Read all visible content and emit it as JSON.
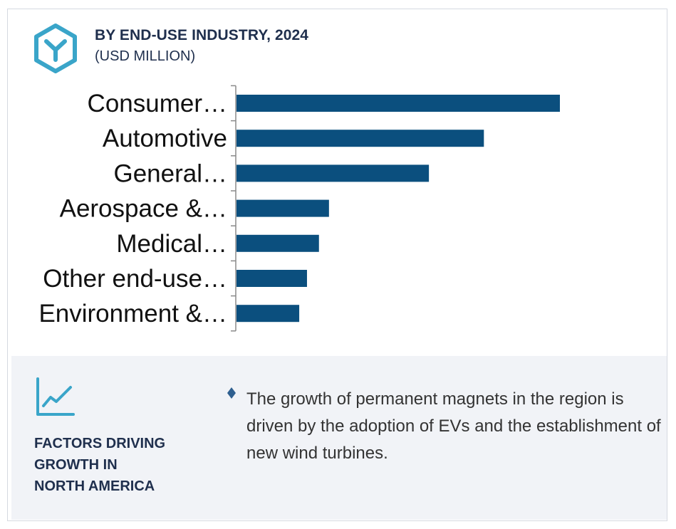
{
  "header": {
    "icon": "hexagon-y-logo-icon",
    "title": "BY END-USE INDUSTRY, 2024",
    "subtitle": "(USD MILLION)"
  },
  "colors": {
    "bar": "#0b4f7e",
    "accent": "#3aa5c9",
    "title": "#1f2f4d",
    "panel_bg": "#f1f3f7"
  },
  "chart_data": {
    "type": "bar",
    "orientation": "horizontal",
    "categories": [
      "Consumer…",
      "Automotive",
      "General…",
      "Aerospace &…",
      "Medical…",
      "Other end-use…",
      "Environment &…"
    ],
    "values": [
      100,
      76.5,
      59.5,
      28.6,
      25.5,
      21.8,
      19.4
    ],
    "title": "BY END-USE INDUSTRY, 2024",
    "subtitle": "(USD MILLION)",
    "xlabel": "",
    "ylabel": "",
    "xlim": [
      0,
      100
    ],
    "grid": false,
    "legend": "none"
  },
  "factors": {
    "icon": "line-chart-icon",
    "title_lines": [
      "FACTORS DRIVING",
      "GROWTH IN",
      "NORTH AMERICA"
    ],
    "bullet_icon": "diamond-bullet-icon",
    "text": "The growth of permanent magnets in the region is driven by the adoption of EVs and the establishment of new wind turbines."
  }
}
